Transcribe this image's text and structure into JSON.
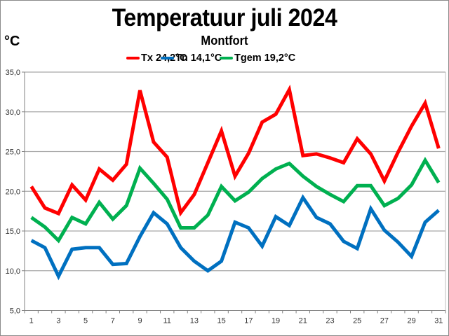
{
  "chart_data": {
    "type": "line",
    "title": "Temperatuur juli 2024",
    "subtitle": "Montfort",
    "ylabel": "°C",
    "xlabel": "",
    "ylim": [
      5,
      35
    ],
    "yticks": [
      35,
      30,
      25,
      20,
      15,
      10,
      5
    ],
    "ytick_labels": [
      "35,0",
      "30,0",
      "25,0",
      "20,0",
      "15,0",
      "10,0",
      "5,0"
    ],
    "x": [
      1,
      2,
      3,
      4,
      5,
      6,
      7,
      8,
      9,
      10,
      11,
      12,
      13,
      14,
      15,
      16,
      17,
      18,
      19,
      20,
      21,
      22,
      23,
      24,
      25,
      26,
      27,
      28,
      29,
      30,
      31
    ],
    "xtick_labels": [
      "1",
      "3",
      "5",
      "7",
      "9",
      "11",
      "13",
      "15",
      "17",
      "19",
      "21",
      "23",
      "25",
      "27",
      "29",
      "31"
    ],
    "xtick_label_days": [
      1,
      3,
      5,
      7,
      9,
      11,
      13,
      15,
      17,
      19,
      21,
      23,
      25,
      27,
      29,
      31
    ],
    "grid": true,
    "legend_position": "top-center",
    "series": [
      {
        "name": "Tx",
        "legend_label": "Tx 24,2°C",
        "color": "#ff0000",
        "values": [
          20.6,
          17.9,
          17.2,
          20.8,
          18.9,
          22.8,
          21.4,
          23.4,
          32.7,
          26.2,
          24.3,
          17.3,
          19.6,
          23.6,
          27.6,
          21.9,
          24.8,
          28.7,
          29.7,
          32.8,
          24.5,
          24.7,
          24.2,
          23.6,
          26.6,
          24.7,
          21.3,
          24.9,
          28.2,
          31.1,
          25.4
        ]
      },
      {
        "name": "Tn",
        "legend_label": "Tn 14,1°C",
        "color": "#0070c0",
        "values": [
          13.8,
          12.9,
          9.3,
          12.7,
          12.9,
          12.9,
          10.8,
          10.9,
          14.3,
          17.3,
          15.9,
          12.9,
          11.2,
          10.0,
          11.2,
          16.1,
          15.4,
          13.1,
          16.8,
          15.7,
          19.2,
          16.7,
          15.9,
          13.7,
          12.8,
          17.8,
          15.1,
          13.6,
          11.8,
          16.1,
          17.6
        ]
      },
      {
        "name": "Tgem",
        "legend_label": "Tgem 19,2°C",
        "color": "#00b050",
        "values": [
          16.7,
          15.5,
          13.8,
          16.7,
          15.9,
          18.6,
          16.5,
          18.2,
          22.9,
          21.0,
          19.0,
          15.4,
          15.4,
          17.0,
          20.6,
          18.8,
          19.9,
          21.6,
          22.8,
          23.5,
          21.9,
          20.6,
          19.6,
          18.7,
          20.7,
          20.7,
          18.2,
          19.1,
          20.8,
          23.9,
          21.1
        ]
      }
    ]
  }
}
